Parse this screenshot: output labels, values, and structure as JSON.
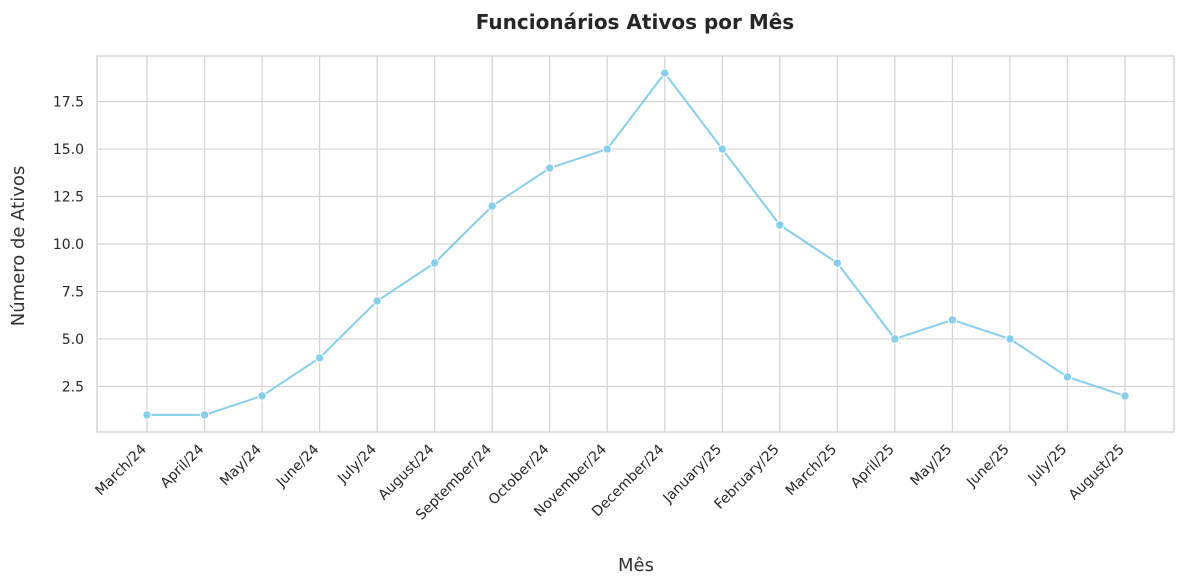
{
  "chart_data": {
    "type": "line",
    "title": "Funcionários Ativos por Mês",
    "xlabel": "Mês",
    "ylabel": "Número de Ativos",
    "categories": [
      "March/24",
      "April/24",
      "May/24",
      "June/24",
      "July/24",
      "August/24",
      "September/24",
      "October/24",
      "November/24",
      "December/24",
      "January/25",
      "February/25",
      "March/25",
      "April/25",
      "May/25",
      "June/25",
      "July/25",
      "August/25"
    ],
    "series": [
      {
        "values": [
          1,
          1,
          2,
          4,
          7,
          9,
          12,
          14,
          15,
          19,
          15,
          11,
          9,
          5,
          6,
          5,
          3,
          2
        ]
      }
    ],
    "ylim": [
      0.1,
      19.9
    ],
    "yticks": [
      2.5,
      5.0,
      7.5,
      10.0,
      12.5,
      15.0,
      17.5
    ],
    "ytick_labels": [
      "2.5",
      "5.0",
      "7.5",
      "10.0",
      "12.5",
      "15.0",
      "17.5"
    ],
    "grid": true,
    "line_color": "#87ceeb",
    "grid_color": "#d3d3d3"
  }
}
